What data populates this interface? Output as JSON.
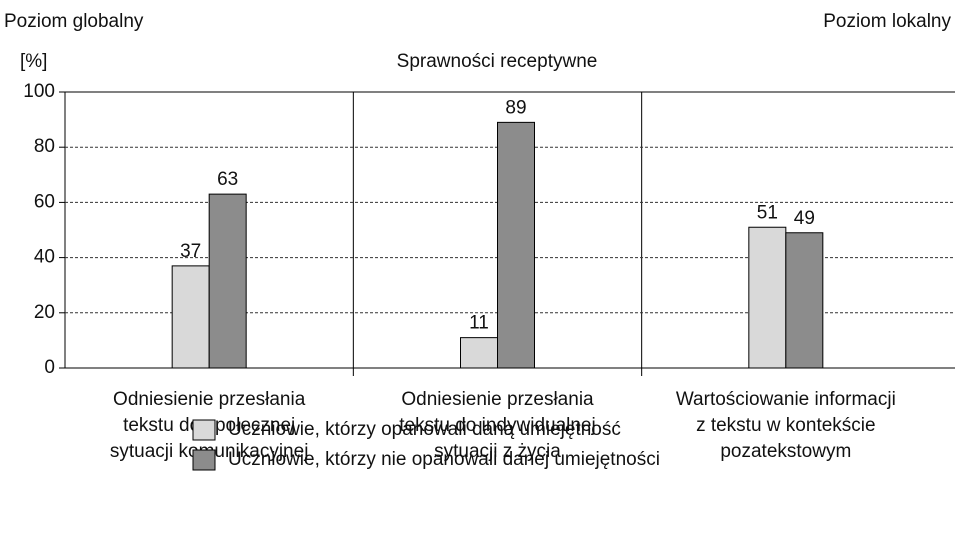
{
  "chart_data": {
    "type": "bar",
    "title": "Sprawności receptywne",
    "corner_left": "Poziom globalny",
    "corner_right": "Poziom lokalny",
    "y_label": "[%]",
    "categories": [
      [
        "Odniesienie przesłania",
        "tekstu do społecznej",
        "sytuacji komunikacyjnej"
      ],
      [
        "Odniesienie przesłania",
        "tekstu do indywidualnej",
        "sytuacji z życia"
      ],
      [
        "Wartościowanie informacji",
        "z tekstu w kontekście",
        "pozatekstowym"
      ]
    ],
    "series": [
      {
        "name": "Uczniowie, którzy opanowali daną umiejętność",
        "color": "#d9d9d9",
        "values": [
          37,
          11,
          51
        ]
      },
      {
        "name": "Uczniowie, którzy nie opanowali danej umiejętności",
        "color": "#8c8c8c",
        "values": [
          63,
          89,
          49
        ]
      }
    ],
    "ylim": [
      0,
      100
    ],
    "yticks": [
      0,
      20,
      40,
      60,
      80,
      100
    ],
    "grid": true
  }
}
